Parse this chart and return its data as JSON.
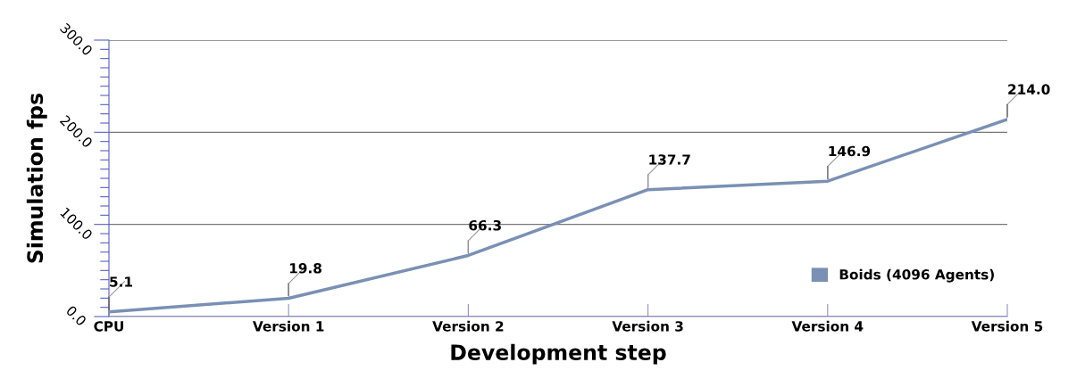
{
  "chart_data": {
    "type": "line",
    "xlabel": "Development step",
    "ylabel": "Simulation fps",
    "categories": [
      "CPU",
      "Version 1",
      "Version 2",
      "Version 3",
      "Version 4",
      "Version 5"
    ],
    "series": [
      {
        "name": "Boids (4096 Agents)",
        "color": "#7a90b4",
        "values": [
          5.1,
          19.8,
          66.3,
          137.7,
          146.9,
          214.0
        ]
      }
    ],
    "value_labels": [
      "5.1",
      "19.8",
      "66.3",
      "137.7",
      "146.9",
      "214.0"
    ],
    "ylim": [
      0,
      300
    ],
    "yticks": [
      {
        "value": 0,
        "label": "0.0"
      },
      {
        "value": 10,
        "label": null
      },
      {
        "value": 20,
        "label": null
      },
      {
        "value": 30,
        "label": null
      },
      {
        "value": 40,
        "label": null
      },
      {
        "value": 50,
        "label": null
      },
      {
        "value": 60,
        "label": null
      },
      {
        "value": 70,
        "label": null
      },
      {
        "value": 80,
        "label": null
      },
      {
        "value": 90,
        "label": null
      },
      {
        "value": 100,
        "label": "100.0"
      },
      {
        "value": 110,
        "label": null
      },
      {
        "value": 120,
        "label": null
      },
      {
        "value": 130,
        "label": null
      },
      {
        "value": 140,
        "label": null
      },
      {
        "value": 150,
        "label": null
      },
      {
        "value": 160,
        "label": null
      },
      {
        "value": 170,
        "label": null
      },
      {
        "value": 180,
        "label": null
      },
      {
        "value": 190,
        "label": null
      },
      {
        "value": 200,
        "label": "200.0"
      },
      {
        "value": 210,
        "label": null
      },
      {
        "value": 220,
        "label": null
      },
      {
        "value": 230,
        "label": null
      },
      {
        "value": 240,
        "label": null
      },
      {
        "value": 250,
        "label": null
      },
      {
        "value": 260,
        "label": null
      },
      {
        "value": 270,
        "label": null
      },
      {
        "value": 280,
        "label": null
      },
      {
        "value": 290,
        "label": null
      },
      {
        "value": 300,
        "label": "300.0"
      }
    ],
    "grid": "y",
    "legend": "right",
    "marker": "none",
    "line_style": "solid"
  }
}
